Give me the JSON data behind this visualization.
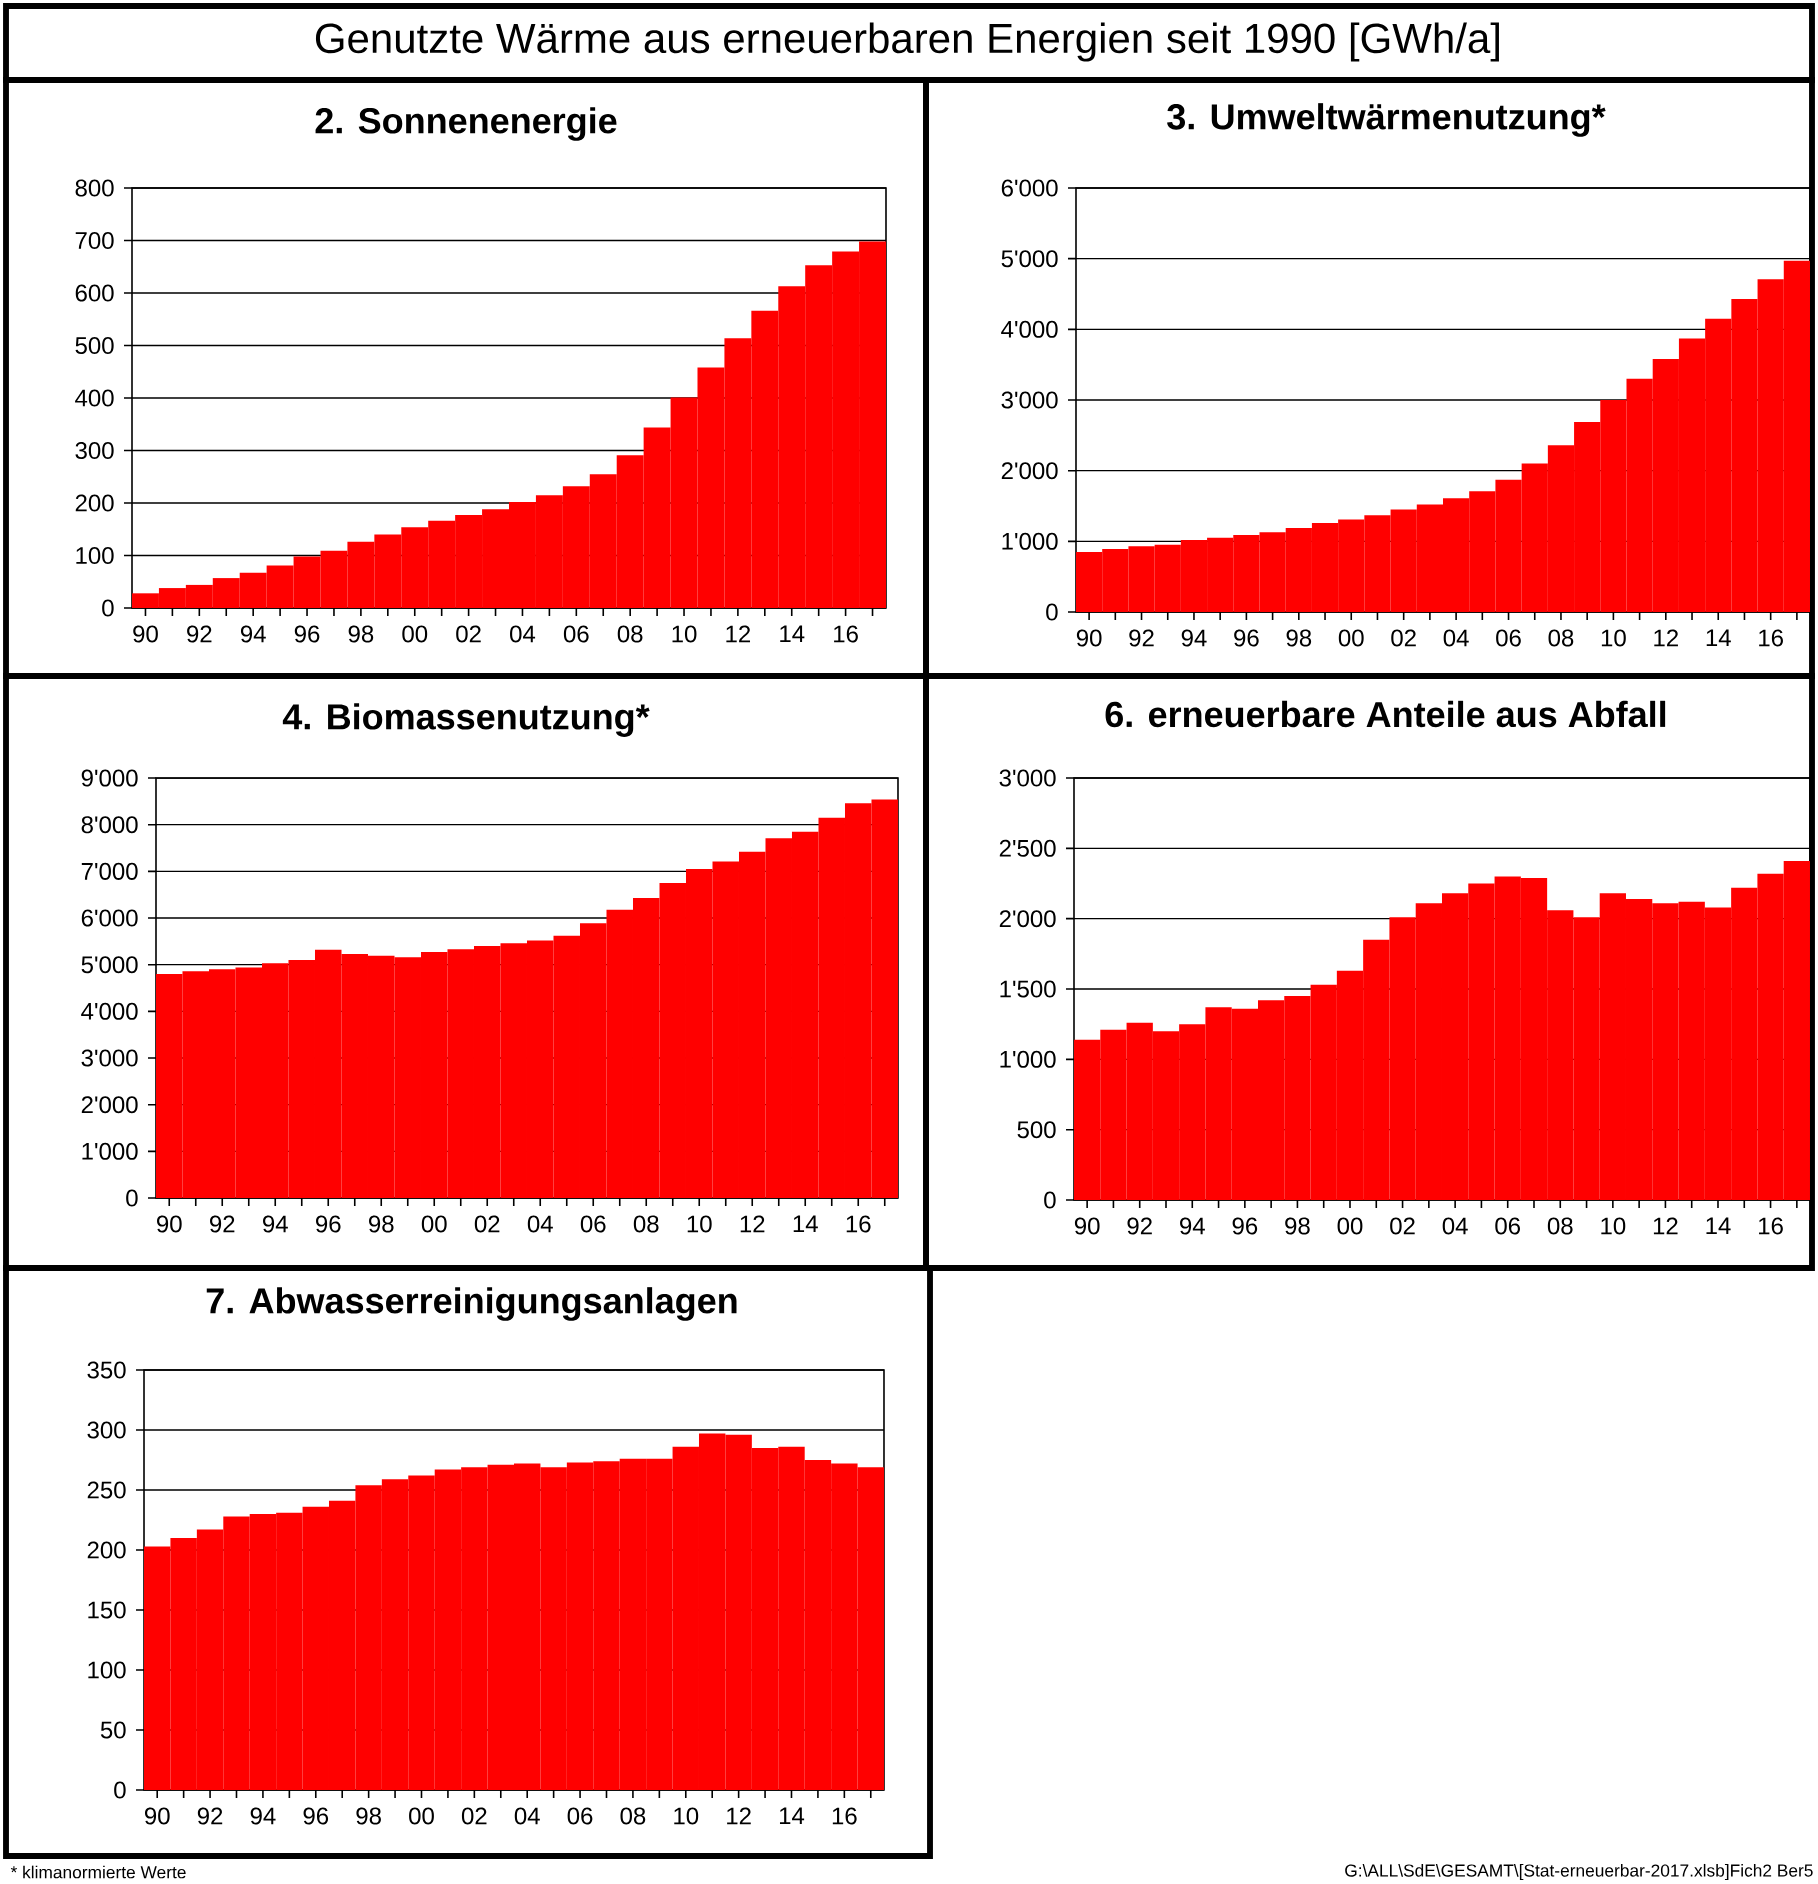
{
  "chart_data": [
    {
      "type": "other",
      "title": "Genutzte Wärme aus erneuerbaren Energien seit 1990  [GWh/a]",
      "annotations": [
        "* klimanormierte Werte",
        "G:\\ALL\\SdE\\GESAMT\\[Stat-erneuerbar-2017.xlsb]Fich2   Ber5"
      ]
    },
    {
      "type": "bar",
      "title": "2. Sonnenenergie",
      "color": "#ff0000",
      "grid": "y",
      "categories": [
        "90",
        null,
        "92",
        null,
        "94",
        null,
        "96",
        null,
        "98",
        null,
        "00",
        null,
        "02",
        null,
        "04",
        null,
        "06",
        null,
        "08",
        null,
        "10",
        null,
        "12",
        null,
        "14",
        null,
        "16",
        null
      ],
      "values": [
        28,
        38,
        44,
        57,
        67,
        81,
        98,
        109,
        126,
        140,
        154,
        166,
        177,
        188,
        202,
        215,
        232,
        255,
        291,
        344,
        401,
        458,
        514,
        566,
        613,
        653,
        679,
        698
      ],
      "ylim": [
        0,
        800
      ],
      "yticks": [
        0,
        100,
        200,
        300,
        400,
        500,
        600,
        700,
        800
      ]
    },
    {
      "type": "bar",
      "title": "3. Umweltwärmenutzung*",
      "color": "#ff0000",
      "grid": "y",
      "categories": [
        "90",
        null,
        "92",
        null,
        "94",
        null,
        "96",
        null,
        "98",
        null,
        "00",
        null,
        "02",
        null,
        "04",
        null,
        "06",
        null,
        "08",
        null,
        "10",
        null,
        "12",
        null,
        "14",
        null,
        "16",
        null
      ],
      "values": [
        850,
        890,
        930,
        950,
        1020,
        1050,
        1090,
        1130,
        1190,
        1260,
        1310,
        1370,
        1450,
        1520,
        1610,
        1710,
        1870,
        2100,
        2360,
        2690,
        3000,
        3300,
        3580,
        3870,
        4150,
        4430,
        4710,
        4970
      ],
      "ylim": [
        0,
        6000
      ],
      "yticks": [
        0,
        {
          "value": 1000,
          "label": "1'000"
        },
        {
          "value": 2000,
          "label": "2'000"
        },
        {
          "value": 3000,
          "label": "3'000"
        },
        {
          "value": 4000,
          "label": "4'000"
        },
        {
          "value": 5000,
          "label": "5'000"
        },
        {
          "value": 6000,
          "label": "6'000"
        }
      ]
    },
    {
      "type": "bar",
      "title": "4. Biomassenutzung*",
      "color": "#ff0000",
      "grid": "y",
      "categories": [
        "90",
        null,
        "92",
        null,
        "94",
        null,
        "96",
        null,
        "98",
        null,
        "00",
        null,
        "02",
        null,
        "04",
        null,
        "06",
        null,
        "08",
        null,
        "10",
        null,
        "12",
        null,
        "14",
        null,
        "16",
        null
      ],
      "values": [
        4800,
        4860,
        4900,
        4940,
        5030,
        5100,
        5320,
        5230,
        5190,
        5160,
        5270,
        5330,
        5400,
        5460,
        5520,
        5620,
        5890,
        6180,
        6430,
        6750,
        7050,
        7210,
        7420,
        7710,
        7850,
        8150,
        8460,
        8540
      ],
      "ylim": [
        0,
        9000
      ],
      "yticks": [
        0,
        {
          "value": 1000,
          "label": "1'000"
        },
        {
          "value": 2000,
          "label": "2'000"
        },
        {
          "value": 3000,
          "label": "3'000"
        },
        {
          "value": 4000,
          "label": "4'000"
        },
        {
          "value": 5000,
          "label": "5'000"
        },
        {
          "value": 6000,
          "label": "6'000"
        },
        {
          "value": 7000,
          "label": "7'000"
        },
        {
          "value": 8000,
          "label": "8'000"
        },
        {
          "value": 9000,
          "label": "9'000"
        }
      ]
    },
    {
      "type": "bar",
      "title": "6. erneuerbare Anteile aus Abfall",
      "color": "#ff0000",
      "grid": "y",
      "categories": [
        "90",
        null,
        "92",
        null,
        "94",
        null,
        "96",
        null,
        "98",
        null,
        "00",
        null,
        "02",
        null,
        "04",
        null,
        "06",
        null,
        "08",
        null,
        "10",
        null,
        "12",
        null,
        "14",
        null,
        "16",
        null
      ],
      "values": [
        1140,
        1210,
        1260,
        1200,
        1250,
        1370,
        1360,
        1420,
        1450,
        1530,
        1630,
        1850,
        2010,
        2110,
        2180,
        2250,
        2300,
        2290,
        2060,
        2010,
        2180,
        2140,
        2110,
        2120,
        2080,
        2220,
        2320,
        2410
      ],
      "ylim": [
        0,
        3000
      ],
      "yticks": [
        0,
        500,
        {
          "value": 1000,
          "label": "1'000"
        },
        {
          "value": 1500,
          "label": "1'500"
        },
        {
          "value": 2000,
          "label": "2'000"
        },
        {
          "value": 2500,
          "label": "2'500"
        },
        {
          "value": 3000,
          "label": "3'000"
        }
      ]
    },
    {
      "type": "bar",
      "title": "7. Abwasserreinigungsanlagen",
      "color": "#ff0000",
      "grid": "y",
      "categories": [
        "90",
        null,
        "92",
        null,
        "94",
        null,
        "96",
        null,
        "98",
        null,
        "00",
        null,
        "02",
        null,
        "04",
        null,
        "06",
        null,
        "08",
        null,
        "10",
        null,
        "12",
        null,
        "14",
        null,
        "16",
        null
      ],
      "values": [
        203,
        210,
        217,
        228,
        230,
        231,
        236,
        241,
        254,
        259,
        262,
        267,
        269,
        271,
        272,
        269,
        273,
        274,
        276,
        276,
        286,
        297,
        296,
        285,
        286,
        275,
        272,
        269
      ],
      "ylim": [
        0,
        350
      ],
      "yticks": [
        0,
        50,
        100,
        150,
        200,
        250,
        300,
        350
      ]
    }
  ]
}
